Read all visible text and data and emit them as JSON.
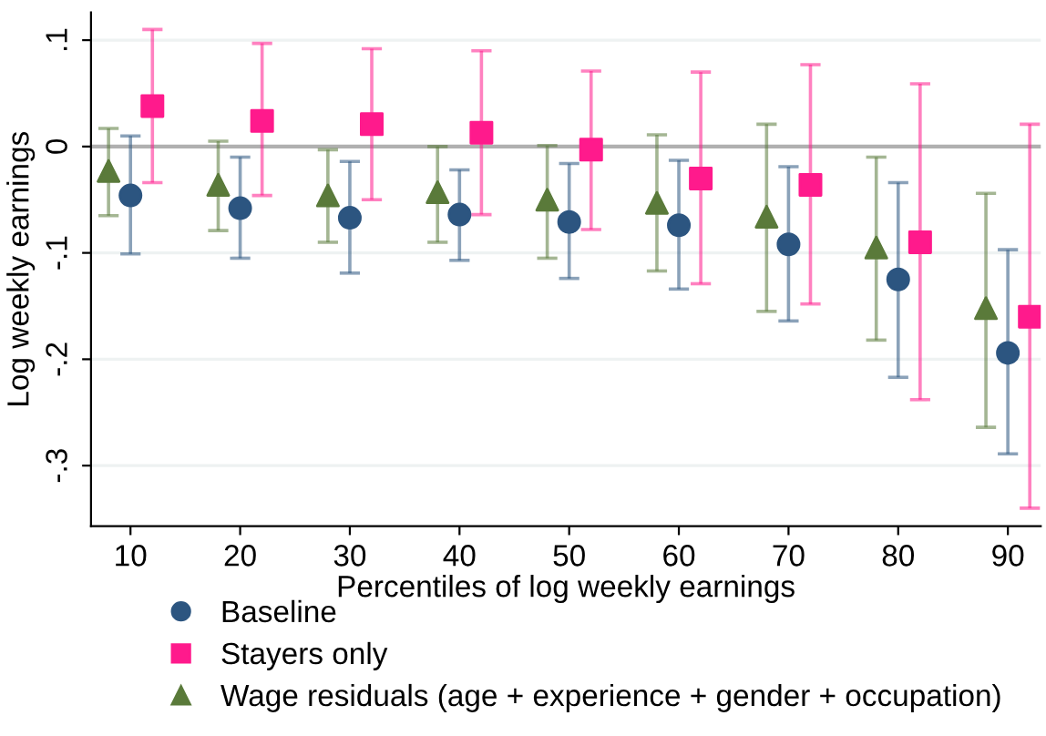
{
  "chart_data": {
    "type": "scatter",
    "xlabel": "Percentiles of log weekly earnings",
    "ylabel": "Log weekly earnings",
    "xlim": [
      6.4,
      93
    ],
    "xticks": [
      10,
      20,
      30,
      40,
      50,
      60,
      70,
      80,
      90
    ],
    "ylim": [
      -0.357,
      0.126
    ],
    "yticks": [
      {
        "value": 0.1,
        "label": ".1"
      },
      {
        "value": 0,
        "label": "0"
      },
      {
        "value": -0.1,
        "label": "-.1"
      },
      {
        "value": -0.2,
        "label": "-.2"
      },
      {
        "value": -0.3,
        "label": "-.3"
      }
    ],
    "grid": "y",
    "legend": "bottom",
    "ref_lines": [
      {
        "axis": "y",
        "value": 0,
        "color": "#b0b0b0"
      }
    ],
    "series": [
      {
        "name": "Baseline",
        "color": "#2c5580",
        "marker": "circle",
        "x": [
          10,
          20,
          30,
          40,
          50,
          60,
          70,
          80,
          90
        ],
        "values": [
          -0.046,
          -0.058,
          -0.067,
          -0.064,
          -0.071,
          -0.074,
          -0.092,
          -0.125,
          -0.194
        ],
        "errors": [
          [
            -0.101,
            0.01
          ],
          [
            -0.105,
            -0.01
          ],
          [
            -0.119,
            -0.014
          ],
          [
            -0.107,
            -0.022
          ],
          [
            -0.124,
            -0.016
          ],
          [
            -0.134,
            -0.013
          ],
          [
            -0.164,
            -0.019
          ],
          [
            -0.217,
            -0.034
          ],
          [
            -0.289,
            -0.097
          ]
        ]
      },
      {
        "name": "Stayers only",
        "color": "#ff1a8c",
        "marker": "square",
        "x": [
          12,
          22,
          32,
          42,
          52,
          62,
          72,
          82,
          92
        ],
        "values": [
          0.038,
          0.024,
          0.021,
          0.013,
          -0.003,
          -0.03,
          -0.036,
          -0.09,
          -0.16
        ],
        "errors": [
          [
            -0.034,
            0.11
          ],
          [
            -0.046,
            0.097
          ],
          [
            -0.05,
            0.092
          ],
          [
            -0.064,
            0.09
          ],
          [
            -0.078,
            0.071
          ],
          [
            -0.129,
            0.07
          ],
          [
            -0.148,
            0.077
          ],
          [
            -0.238,
            0.059
          ],
          [
            -0.34,
            0.021
          ]
        ]
      },
      {
        "name": "Wage residuals (age + experience + gender + occupation)",
        "color": "#5a7a3a",
        "marker": "triangle",
        "x": [
          8,
          18,
          28,
          38,
          48,
          58,
          68,
          78,
          88
        ],
        "values": [
          -0.023,
          -0.036,
          -0.046,
          -0.043,
          -0.05,
          -0.053,
          -0.066,
          -0.095,
          -0.152
        ],
        "errors": [
          [
            -0.065,
            0.017
          ],
          [
            -0.079,
            0.005
          ],
          [
            -0.09,
            -0.003
          ],
          [
            -0.09,
            0.0
          ],
          [
            -0.105,
            0.001
          ],
          [
            -0.117,
            0.011
          ],
          [
            -0.155,
            0.021
          ],
          [
            -0.182,
            -0.01
          ],
          [
            -0.264,
            -0.044
          ]
        ]
      }
    ]
  }
}
